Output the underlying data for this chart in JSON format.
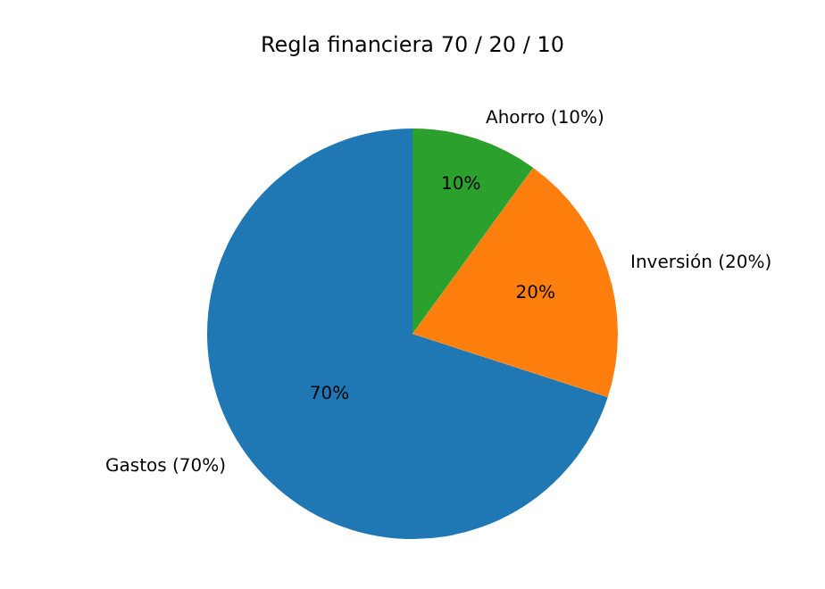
{
  "chart_data": {
    "type": "pie",
    "title": "Regla financiera 70 / 20 / 10",
    "categories": [
      "Gastos (70%)",
      "Inversión (20%)",
      "Ahorro (10%)"
    ],
    "values": [
      70,
      20,
      10
    ],
    "colors": [
      "#1f77b4",
      "#ff7f0e",
      "#2ca02c"
    ],
    "value_labels": [
      "70%",
      "20%",
      "10%"
    ],
    "legend": false
  }
}
